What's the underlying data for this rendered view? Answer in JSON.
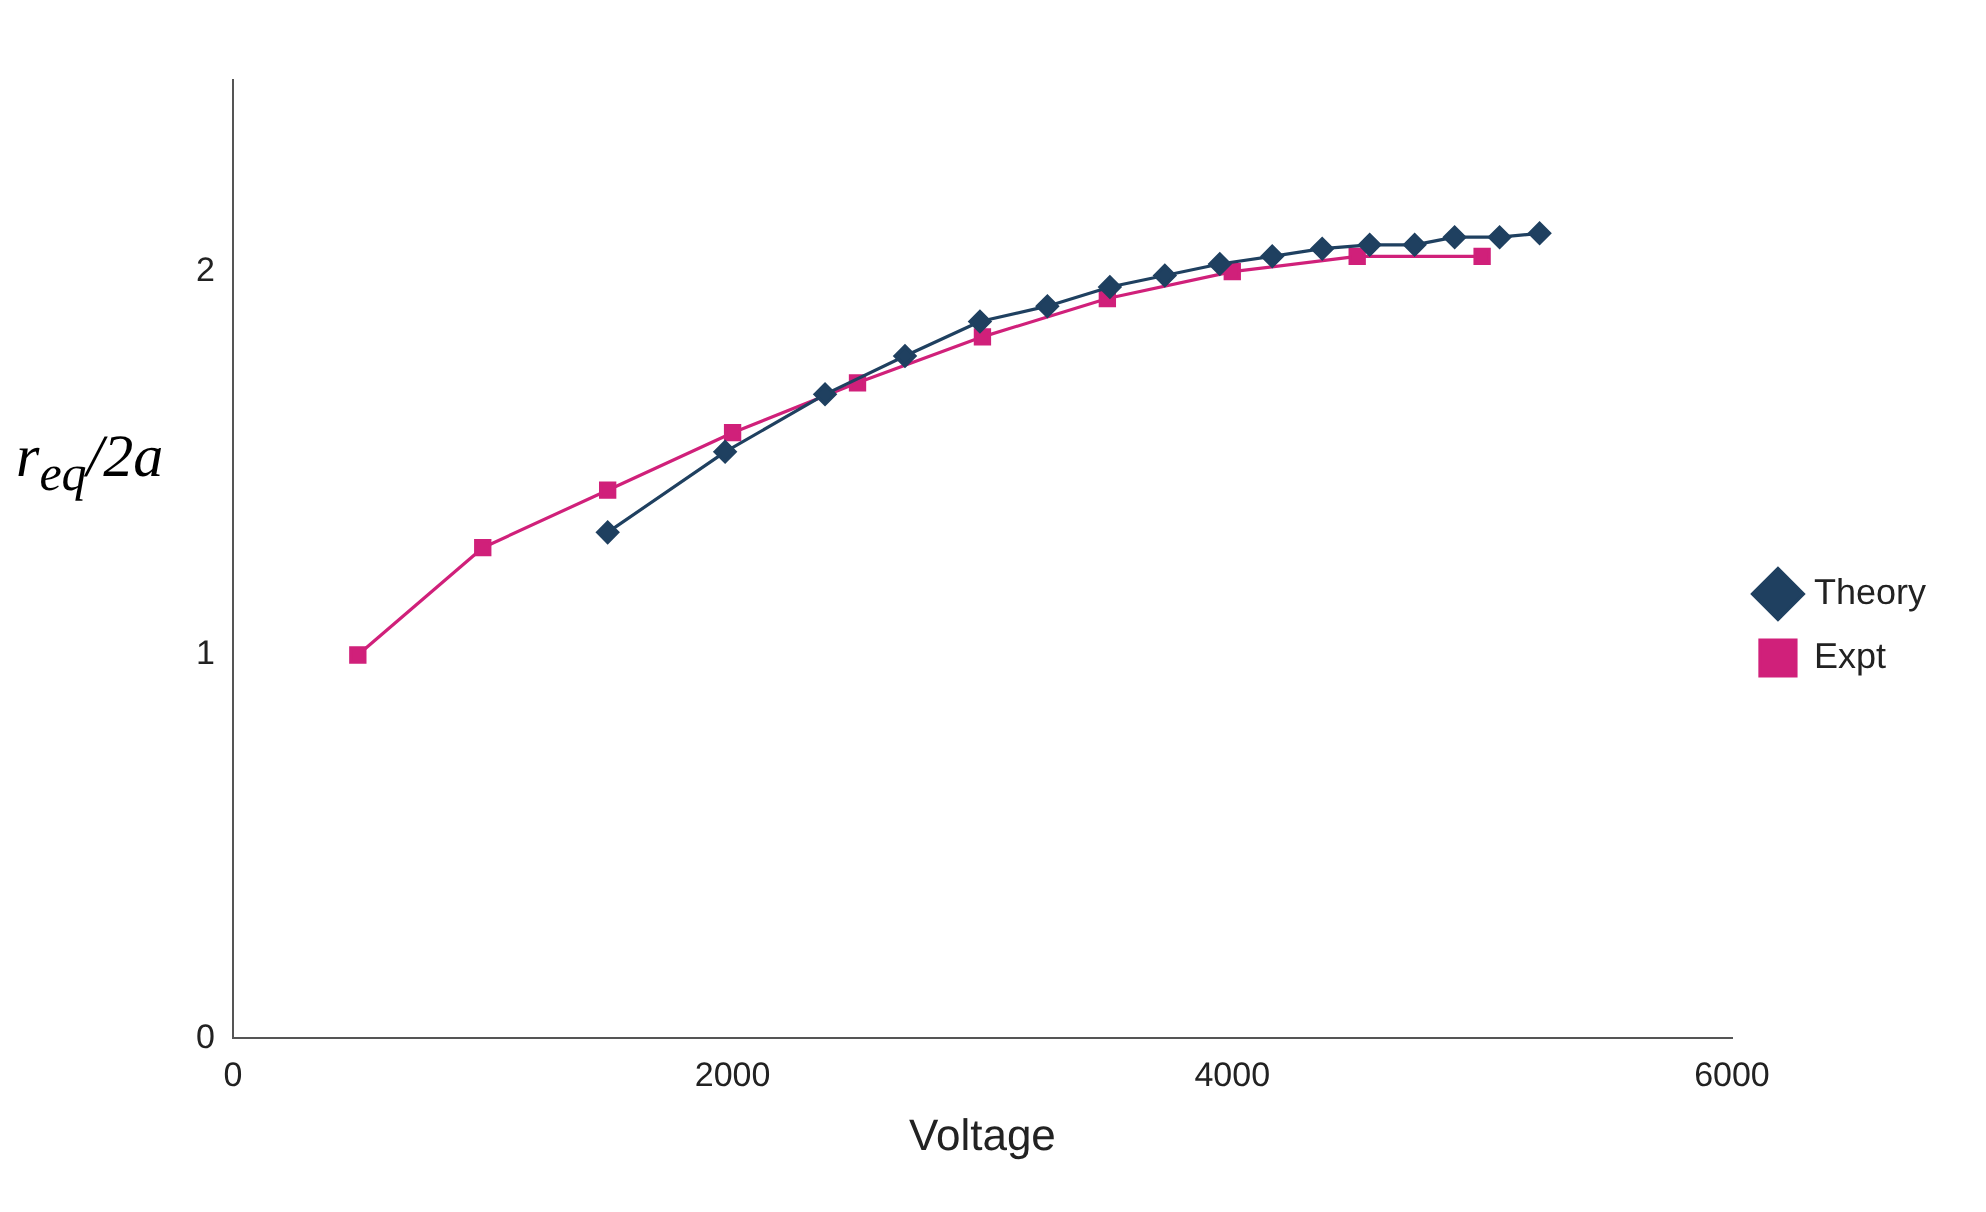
{
  "chart_data": {
    "type": "line",
    "xlabel": "Voltage",
    "ylabel": "r$_{eq}$/2a",
    "xlim": [
      0,
      6000
    ],
    "xticks": [
      0,
      2000,
      4000,
      6000
    ],
    "ylim": [
      0,
      2.5
    ],
    "yticks": [
      0,
      1,
      2
    ],
    "grid": false,
    "legend": "right",
    "line_style": "solid",
    "series": [
      {
        "name": "Theory",
        "color": "#1f4060",
        "marker": "diamond",
        "x": [
          1500,
          1970,
          2370,
          2690,
          2990,
          3260,
          3510,
          3730,
          3950,
          4160,
          4360,
          4550,
          4730,
          4890,
          5070,
          5230
        ],
        "values": [
          1.32,
          1.53,
          1.68,
          1.78,
          1.87,
          1.91,
          1.96,
          1.99,
          2.02,
          2.04,
          2.06,
          2.07,
          2.07,
          2.09,
          2.09,
          2.1
        ]
      },
      {
        "name": "Expt",
        "color": "#d0207a",
        "marker": "square",
        "x": [
          500,
          1000,
          1500,
          2000,
          2500,
          3000,
          3500,
          4000,
          4500,
          5000
        ],
        "values": [
          1.0,
          1.28,
          1.43,
          1.58,
          1.71,
          1.83,
          1.93,
          2.0,
          2.04,
          2.04
        ]
      }
    ]
  }
}
